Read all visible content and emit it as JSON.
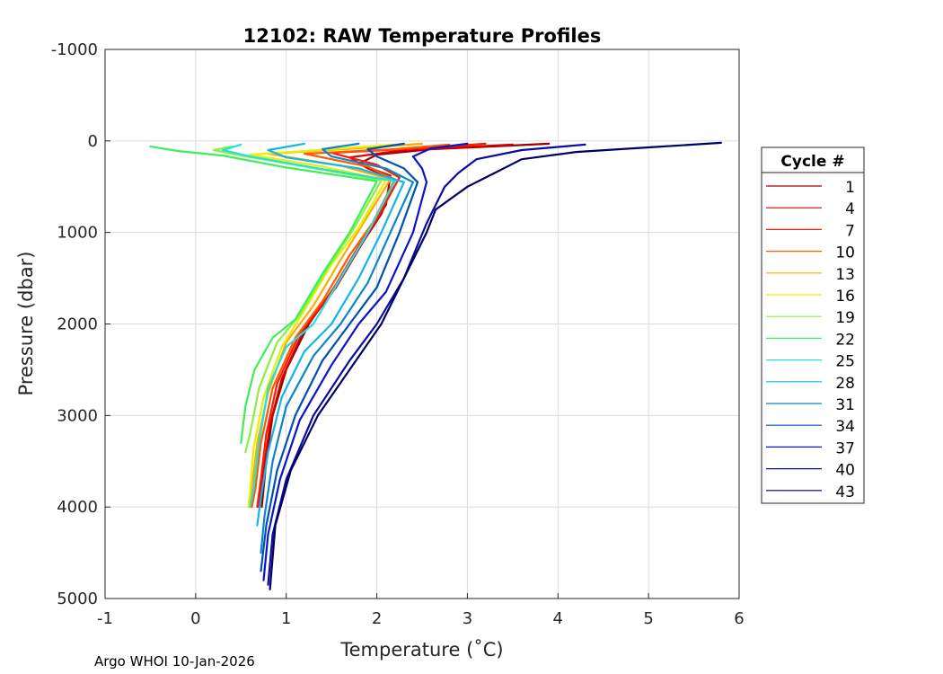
{
  "chart_data": {
    "type": "line",
    "title": "12102: RAW Temperature Profiles",
    "xlabel": "Temperature (˚C)",
    "ylabel": "Pressure (dbar)",
    "xlim": [
      -1,
      6
    ],
    "ylim": [
      -1000,
      5000
    ],
    "y_reversed": true,
    "grid": true,
    "x_ticks": [
      -1,
      0,
      1,
      2,
      3,
      4,
      5,
      6
    ],
    "x_tick_labels": [
      "-1",
      "0",
      "1",
      "2",
      "3",
      "4",
      "5",
      "6"
    ],
    "y_ticks": [
      -1000,
      0,
      1000,
      2000,
      3000,
      4000,
      5000
    ],
    "y_tick_labels": [
      "-1000",
      "0",
      "1000",
      "2000",
      "3000",
      "4000",
      "5000"
    ],
    "legend": {
      "title": "Cycle #",
      "position": "outside-right",
      "entries": [
        {
          "label": "1",
          "color": "#9b0000"
        },
        {
          "label": "4",
          "color": "#d40000"
        },
        {
          "label": "7",
          "color": "#ff1a00"
        },
        {
          "label": "10",
          "color": "#ff5a00"
        },
        {
          "label": "13",
          "color": "#ffaa00"
        },
        {
          "label": "16",
          "color": "#e6f000"
        },
        {
          "label": "19",
          "color": "#8cf040"
        },
        {
          "label": "22",
          "color": "#3cf05a"
        },
        {
          "label": "25",
          "color": "#20e0e0"
        },
        {
          "label": "28",
          "color": "#14b4e6"
        },
        {
          "label": "31",
          "color": "#0a87c8"
        },
        {
          "label": "34",
          "color": "#0050b4"
        },
        {
          "label": "37",
          "color": "#0a14c8"
        },
        {
          "label": "40",
          "color": "#0a0aa0"
        },
        {
          "label": "43",
          "color": "#000064"
        }
      ]
    },
    "series": [
      {
        "name": "1",
        "color": "#9b0000",
        "points": [
          [
            3.9,
            30
          ],
          [
            3.3,
            60
          ],
          [
            2.6,
            90
          ],
          [
            2.0,
            150
          ],
          [
            1.8,
            250
          ],
          [
            2.15,
            380
          ],
          [
            2.1,
            700
          ],
          [
            1.9,
            1000
          ],
          [
            1.6,
            1500
          ],
          [
            1.25,
            2000
          ],
          [
            1.0,
            2500
          ],
          [
            0.85,
            3000
          ],
          [
            0.78,
            3500
          ],
          [
            0.73,
            4000
          ]
        ]
      },
      {
        "name": "4",
        "color": "#d40000",
        "points": [
          [
            3.5,
            40
          ],
          [
            2.9,
            70
          ],
          [
            2.3,
            100
          ],
          [
            1.7,
            180
          ],
          [
            1.9,
            300
          ],
          [
            2.2,
            420
          ],
          [
            2.05,
            800
          ],
          [
            1.85,
            1100
          ],
          [
            1.55,
            1600
          ],
          [
            1.2,
            2050
          ],
          [
            0.95,
            2600
          ],
          [
            0.82,
            3100
          ],
          [
            0.75,
            3600
          ],
          [
            0.7,
            4000
          ]
        ]
      },
      {
        "name": "7",
        "color": "#ff1a00",
        "points": [
          [
            3.2,
            30
          ],
          [
            2.5,
            80
          ],
          [
            1.5,
            130
          ],
          [
            2.0,
            260
          ],
          [
            2.25,
            400
          ],
          [
            2.0,
            850
          ],
          [
            1.8,
            1150
          ],
          [
            1.5,
            1650
          ],
          [
            1.15,
            2100
          ],
          [
            0.9,
            2650
          ],
          [
            0.78,
            3200
          ],
          [
            0.72,
            3700
          ],
          [
            0.68,
            4000
          ]
        ]
      },
      {
        "name": "10",
        "color": "#ff5a00",
        "points": [
          [
            2.8,
            40
          ],
          [
            2.2,
            90
          ],
          [
            1.2,
            140
          ],
          [
            1.9,
            280
          ],
          [
            2.2,
            420
          ],
          [
            1.95,
            900
          ],
          [
            1.7,
            1250
          ],
          [
            1.4,
            1750
          ],
          [
            1.1,
            2150
          ],
          [
            0.85,
            2700
          ],
          [
            0.72,
            3300
          ],
          [
            0.66,
            3800
          ],
          [
            0.62,
            4000
          ]
        ]
      },
      {
        "name": "13",
        "color": "#ffaa00",
        "points": [
          [
            2.5,
            30
          ],
          [
            1.8,
            80
          ],
          [
            0.8,
            140
          ],
          [
            1.6,
            270
          ],
          [
            2.15,
            420
          ],
          [
            1.85,
            900
          ],
          [
            1.6,
            1300
          ],
          [
            1.3,
            1800
          ],
          [
            1.0,
            2200
          ],
          [
            0.8,
            2750
          ],
          [
            0.68,
            3300
          ],
          [
            0.62,
            3800
          ],
          [
            0.6,
            4000
          ]
        ]
      },
      {
        "name": "16",
        "color": "#e6f000",
        "points": [
          [
            2.2,
            40
          ],
          [
            1.5,
            90
          ],
          [
            0.6,
            150
          ],
          [
            1.4,
            280
          ],
          [
            2.1,
            430
          ],
          [
            1.8,
            950
          ],
          [
            1.5,
            1350
          ],
          [
            1.2,
            1850
          ],
          [
            0.95,
            2250
          ],
          [
            0.75,
            2800
          ],
          [
            0.64,
            3350
          ],
          [
            0.6,
            3850
          ],
          [
            0.58,
            4000
          ]
        ]
      },
      {
        "name": "19",
        "color": "#8cf040",
        "points": [
          [
            0.4,
            60
          ],
          [
            0.2,
            100
          ],
          [
            0.5,
            160
          ],
          [
            1.2,
            280
          ],
          [
            2.05,
            430
          ],
          [
            1.75,
            950
          ],
          [
            1.45,
            1400
          ],
          [
            1.15,
            1900
          ],
          [
            0.9,
            2200
          ],
          [
            0.7,
            2700
          ],
          [
            0.6,
            3200
          ],
          [
            0.55,
            3400
          ]
        ]
      },
      {
        "name": "22",
        "color": "#3cf05a",
        "points": [
          [
            -0.5,
            60
          ],
          [
            -0.2,
            110
          ],
          [
            0.3,
            160
          ],
          [
            1.0,
            290
          ],
          [
            2.0,
            440
          ],
          [
            1.7,
            1000
          ],
          [
            1.4,
            1450
          ],
          [
            1.1,
            1950
          ],
          [
            0.85,
            2150
          ],
          [
            0.65,
            2500
          ],
          [
            0.55,
            2900
          ],
          [
            0.5,
            3300
          ]
        ]
      },
      {
        "name": "25",
        "color": "#20e0e0",
        "points": [
          [
            0.5,
            40
          ],
          [
            0.3,
            100
          ],
          [
            0.6,
            170
          ],
          [
            1.3,
            290
          ],
          [
            2.2,
            440
          ],
          [
            1.9,
            1000
          ],
          [
            1.6,
            1500
          ],
          [
            1.3,
            2000
          ],
          [
            1.0,
            2250
          ],
          [
            0.8,
            2700
          ],
          [
            0.7,
            3300
          ],
          [
            0.64,
            3800
          ],
          [
            0.6,
            4000
          ]
        ]
      },
      {
        "name": "28",
        "color": "#14b4e6",
        "points": [
          [
            1.2,
            30
          ],
          [
            0.8,
            100
          ],
          [
            1.0,
            180
          ],
          [
            1.8,
            300
          ],
          [
            2.3,
            450
          ],
          [
            2.05,
            1000
          ],
          [
            1.8,
            1500
          ],
          [
            1.5,
            2000
          ],
          [
            1.2,
            2300
          ],
          [
            0.95,
            2800
          ],
          [
            0.8,
            3400
          ],
          [
            0.72,
            3900
          ],
          [
            0.68,
            4200
          ]
        ]
      },
      {
        "name": "31",
        "color": "#0a87c8",
        "points": [
          [
            1.8,
            30
          ],
          [
            1.4,
            90
          ],
          [
            1.5,
            170
          ],
          [
            2.1,
            300
          ],
          [
            2.4,
            450
          ],
          [
            2.15,
            1000
          ],
          [
            1.9,
            1550
          ],
          [
            1.6,
            2000
          ],
          [
            1.3,
            2350
          ],
          [
            1.0,
            2900
          ],
          [
            0.85,
            3500
          ],
          [
            0.76,
            4100
          ],
          [
            0.72,
            4500
          ]
        ]
      },
      {
        "name": "34",
        "color": "#0050b4",
        "points": [
          [
            2.3,
            30
          ],
          [
            1.9,
            90
          ],
          [
            2.0,
            170
          ],
          [
            2.3,
            300
          ],
          [
            2.45,
            450
          ],
          [
            2.25,
            1000
          ],
          [
            2.0,
            1600
          ],
          [
            1.7,
            2000
          ],
          [
            1.4,
            2400
          ],
          [
            1.1,
            3000
          ],
          [
            0.9,
            3600
          ],
          [
            0.78,
            4200
          ],
          [
            0.72,
            4700
          ]
        ]
      },
      {
        "name": "37",
        "color": "#0a14c8",
        "points": [
          [
            3.0,
            30
          ],
          [
            2.6,
            80
          ],
          [
            2.4,
            170
          ],
          [
            2.5,
            300
          ],
          [
            2.55,
            450
          ],
          [
            2.4,
            1000
          ],
          [
            2.1,
            1650
          ],
          [
            1.8,
            2000
          ],
          [
            1.5,
            2450
          ],
          [
            1.15,
            3050
          ],
          [
            0.93,
            3700
          ],
          [
            0.8,
            4300
          ],
          [
            0.75,
            4800
          ]
        ]
      },
      {
        "name": "40",
        "color": "#0a0aa0",
        "points": [
          [
            4.3,
            40
          ],
          [
            3.6,
            100
          ],
          [
            3.1,
            200
          ],
          [
            2.9,
            350
          ],
          [
            2.75,
            500
          ],
          [
            2.55,
            900
          ],
          [
            2.3,
            1500
          ],
          [
            2.0,
            2000
          ],
          [
            1.7,
            2400
          ],
          [
            1.3,
            3000
          ],
          [
            1.0,
            3700
          ],
          [
            0.85,
            4300
          ],
          [
            0.8,
            4850
          ]
        ]
      },
      {
        "name": "43",
        "color": "#000064",
        "points": [
          [
            5.8,
            20
          ],
          [
            5.0,
            70
          ],
          [
            4.2,
            120
          ],
          [
            3.6,
            200
          ],
          [
            3.3,
            350
          ],
          [
            3.0,
            500
          ],
          [
            2.65,
            750
          ],
          [
            2.55,
            1000
          ],
          [
            2.3,
            1500
          ],
          [
            2.05,
            2000
          ],
          [
            1.7,
            2500
          ],
          [
            1.35,
            3000
          ],
          [
            1.05,
            3600
          ],
          [
            0.88,
            4200
          ],
          [
            0.82,
            4900
          ]
        ]
      }
    ]
  },
  "footer": {
    "text": "Argo WHOI 10-Jan-2026"
  }
}
